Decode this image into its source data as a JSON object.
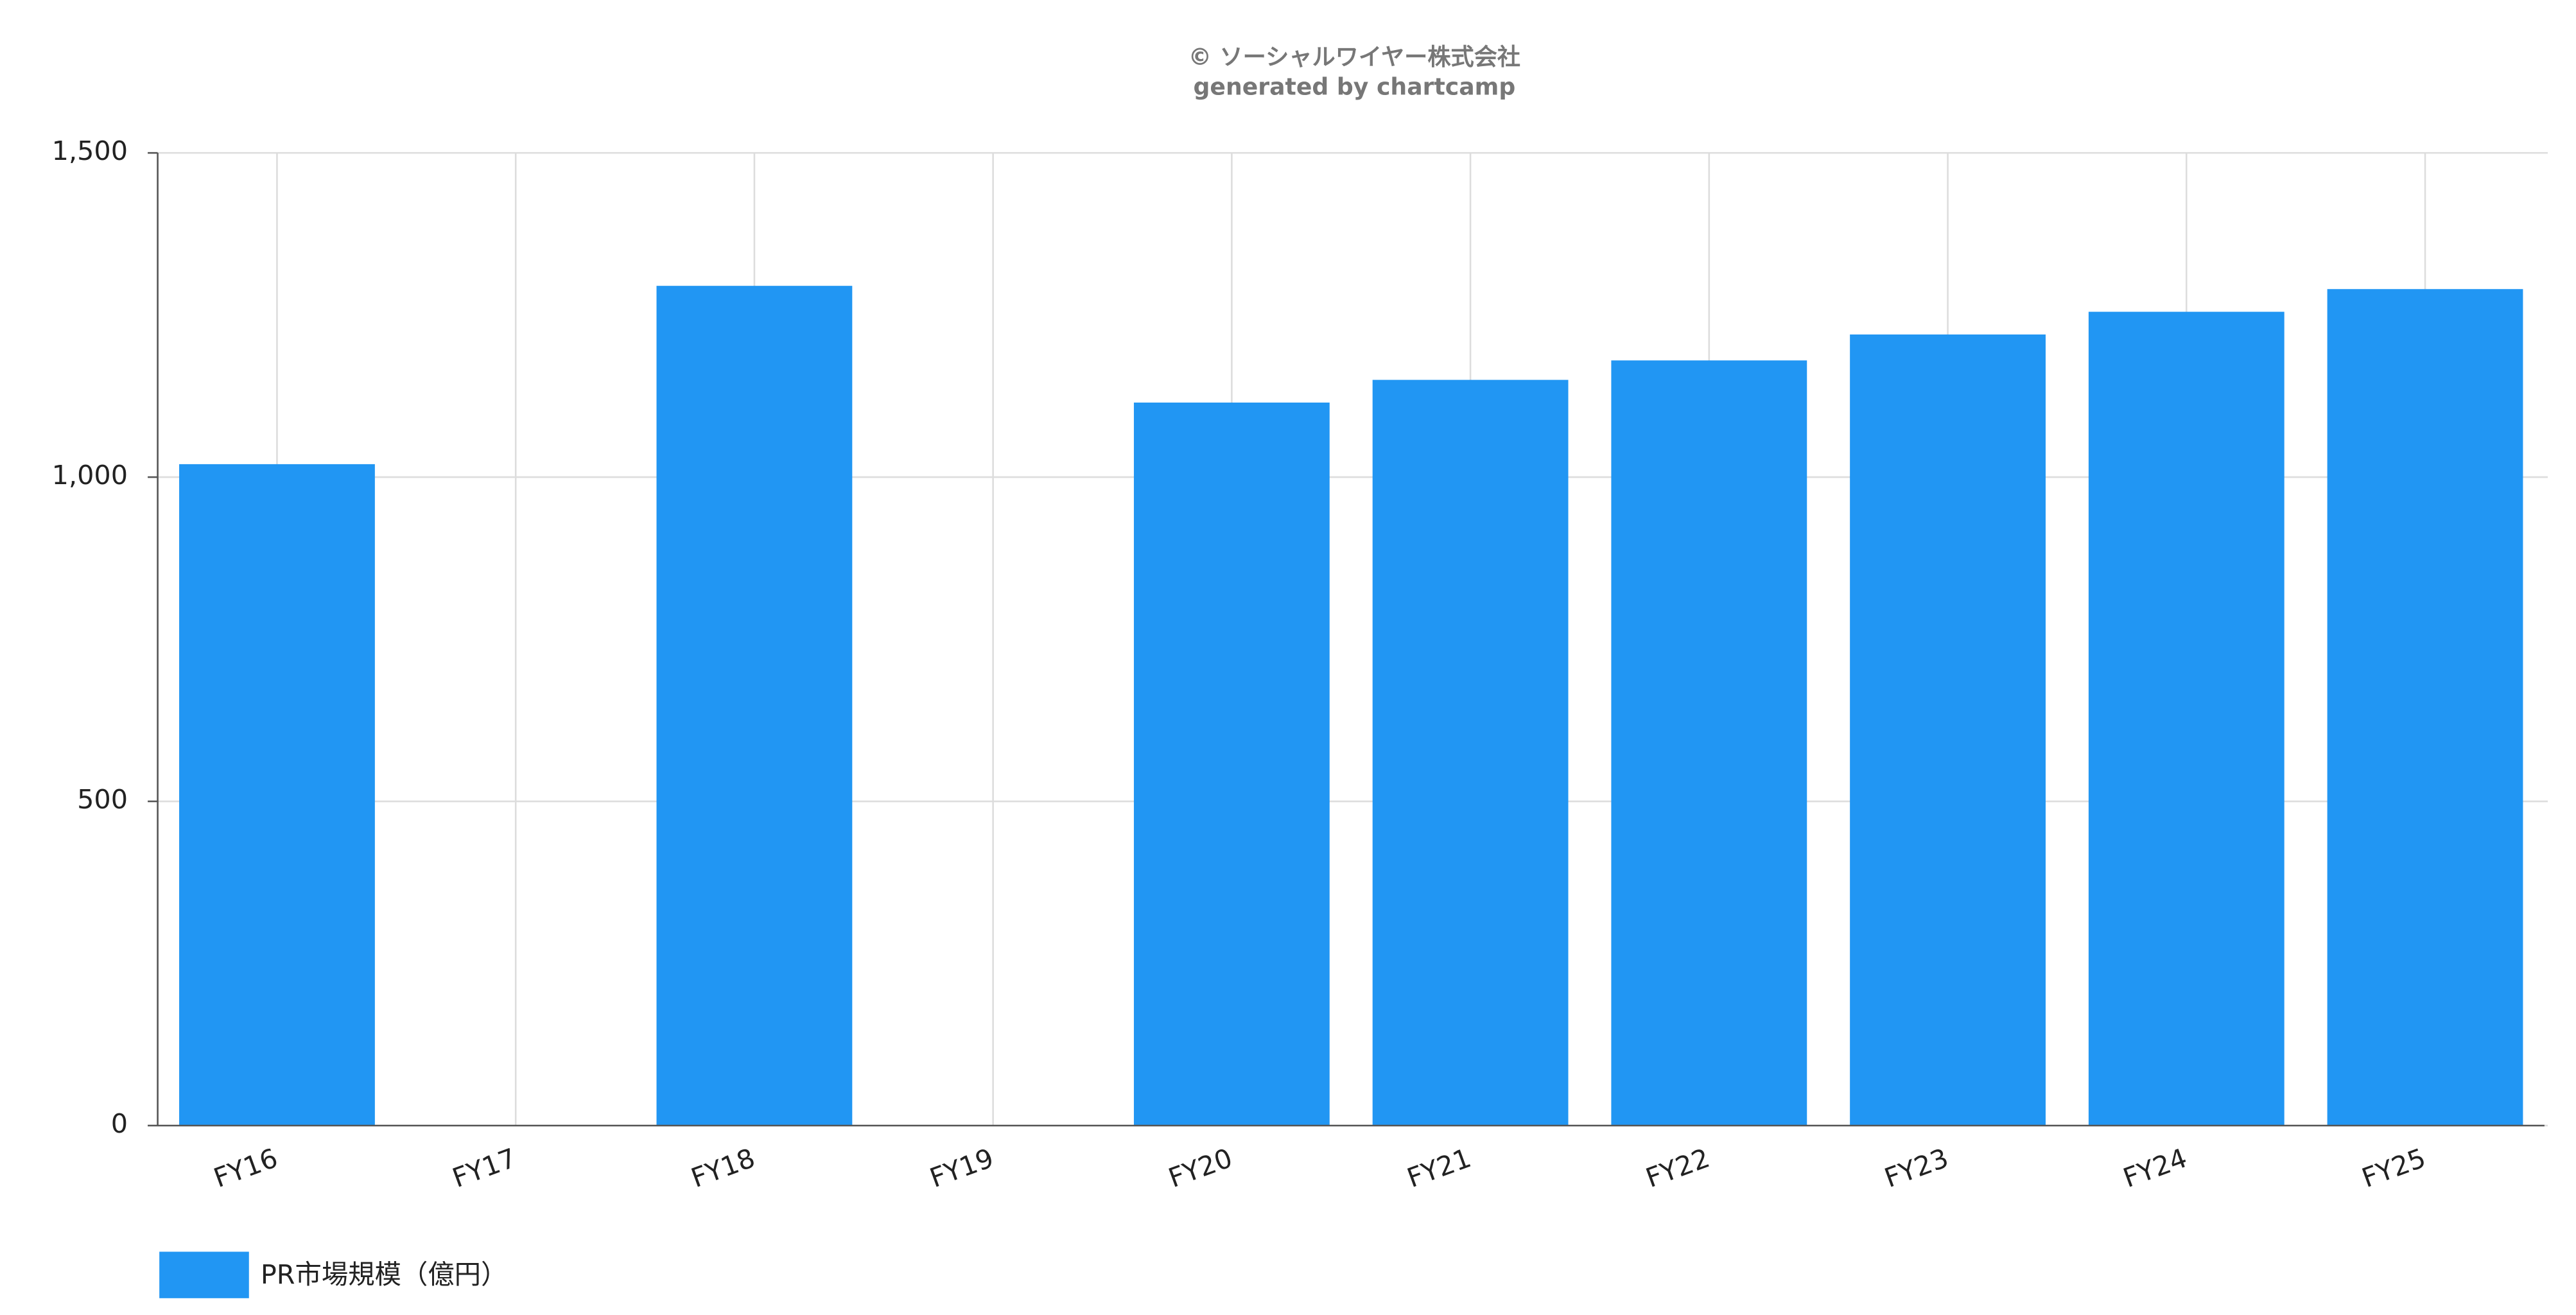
{
  "chart_data": {
    "type": "bar",
    "title": "© ソーシャルワイヤー株式会社",
    "subtitle": "generated by chartcamp",
    "categories": [
      "FY16",
      "FY17",
      "FY18",
      "FY19",
      "FY20",
      "FY21",
      "FY22",
      "FY23",
      "FY24",
      "FY25"
    ],
    "series": [
      {
        "name": "PR市場規模（億円）",
        "color": "#2196f3",
        "values": [
          1020,
          null,
          1295,
          null,
          1115,
          1150,
          1180,
          1220,
          1255,
          1290
        ]
      }
    ],
    "ylim": [
      0,
      1500
    ],
    "yticks": [
      0,
      500,
      {
        "value": 1000,
        "label": "1,000"
      },
      {
        "value": 1500,
        "label": "1,500"
      }
    ],
    "grid": true,
    "legend": "bottom-left"
  }
}
